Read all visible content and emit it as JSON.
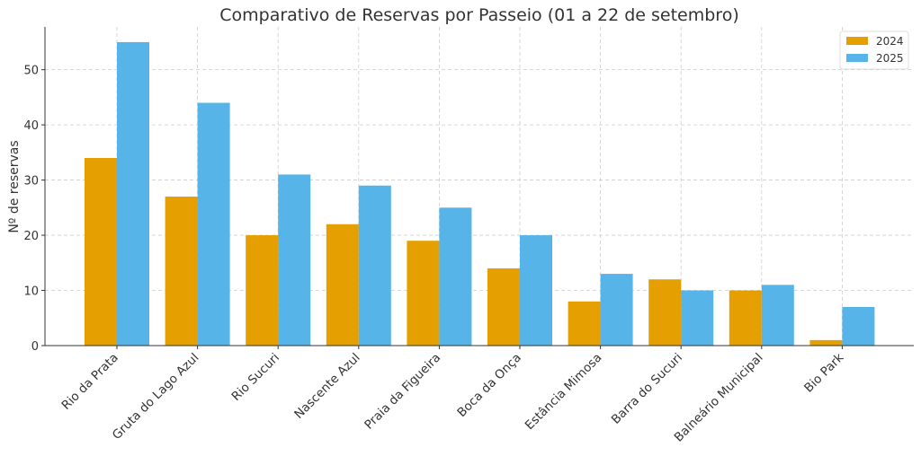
{
  "chart_data": {
    "type": "bar",
    "title": "Comparativo de Reservas por Passeio (01 a 22 de setembro)",
    "xlabel": "",
    "ylabel": "Nº de reservas",
    "ylim": [
      0,
      57.75
    ],
    "yticks": [
      0,
      10,
      20,
      30,
      40,
      50
    ],
    "grid": true,
    "legend_position": "top-right",
    "categories": [
      "Rio da Prata",
      "Gruta do Lago Azul",
      "Rio Sucuri",
      "Nascente Azul",
      "Praia da Figueira",
      "Boca da Onça",
      "Estância Mimosa",
      "Barra do Sucuri",
      "Balneário Municipal",
      "Bio Park"
    ],
    "series": [
      {
        "name": "2024",
        "color": "#E69F00",
        "values": [
          34,
          27,
          20,
          22,
          19,
          14,
          8,
          12,
          10,
          1
        ]
      },
      {
        "name": "2025",
        "color": "#56B4E9",
        "values": [
          55,
          44,
          31,
          29,
          25,
          20,
          13,
          10,
          11,
          7
        ]
      }
    ]
  }
}
